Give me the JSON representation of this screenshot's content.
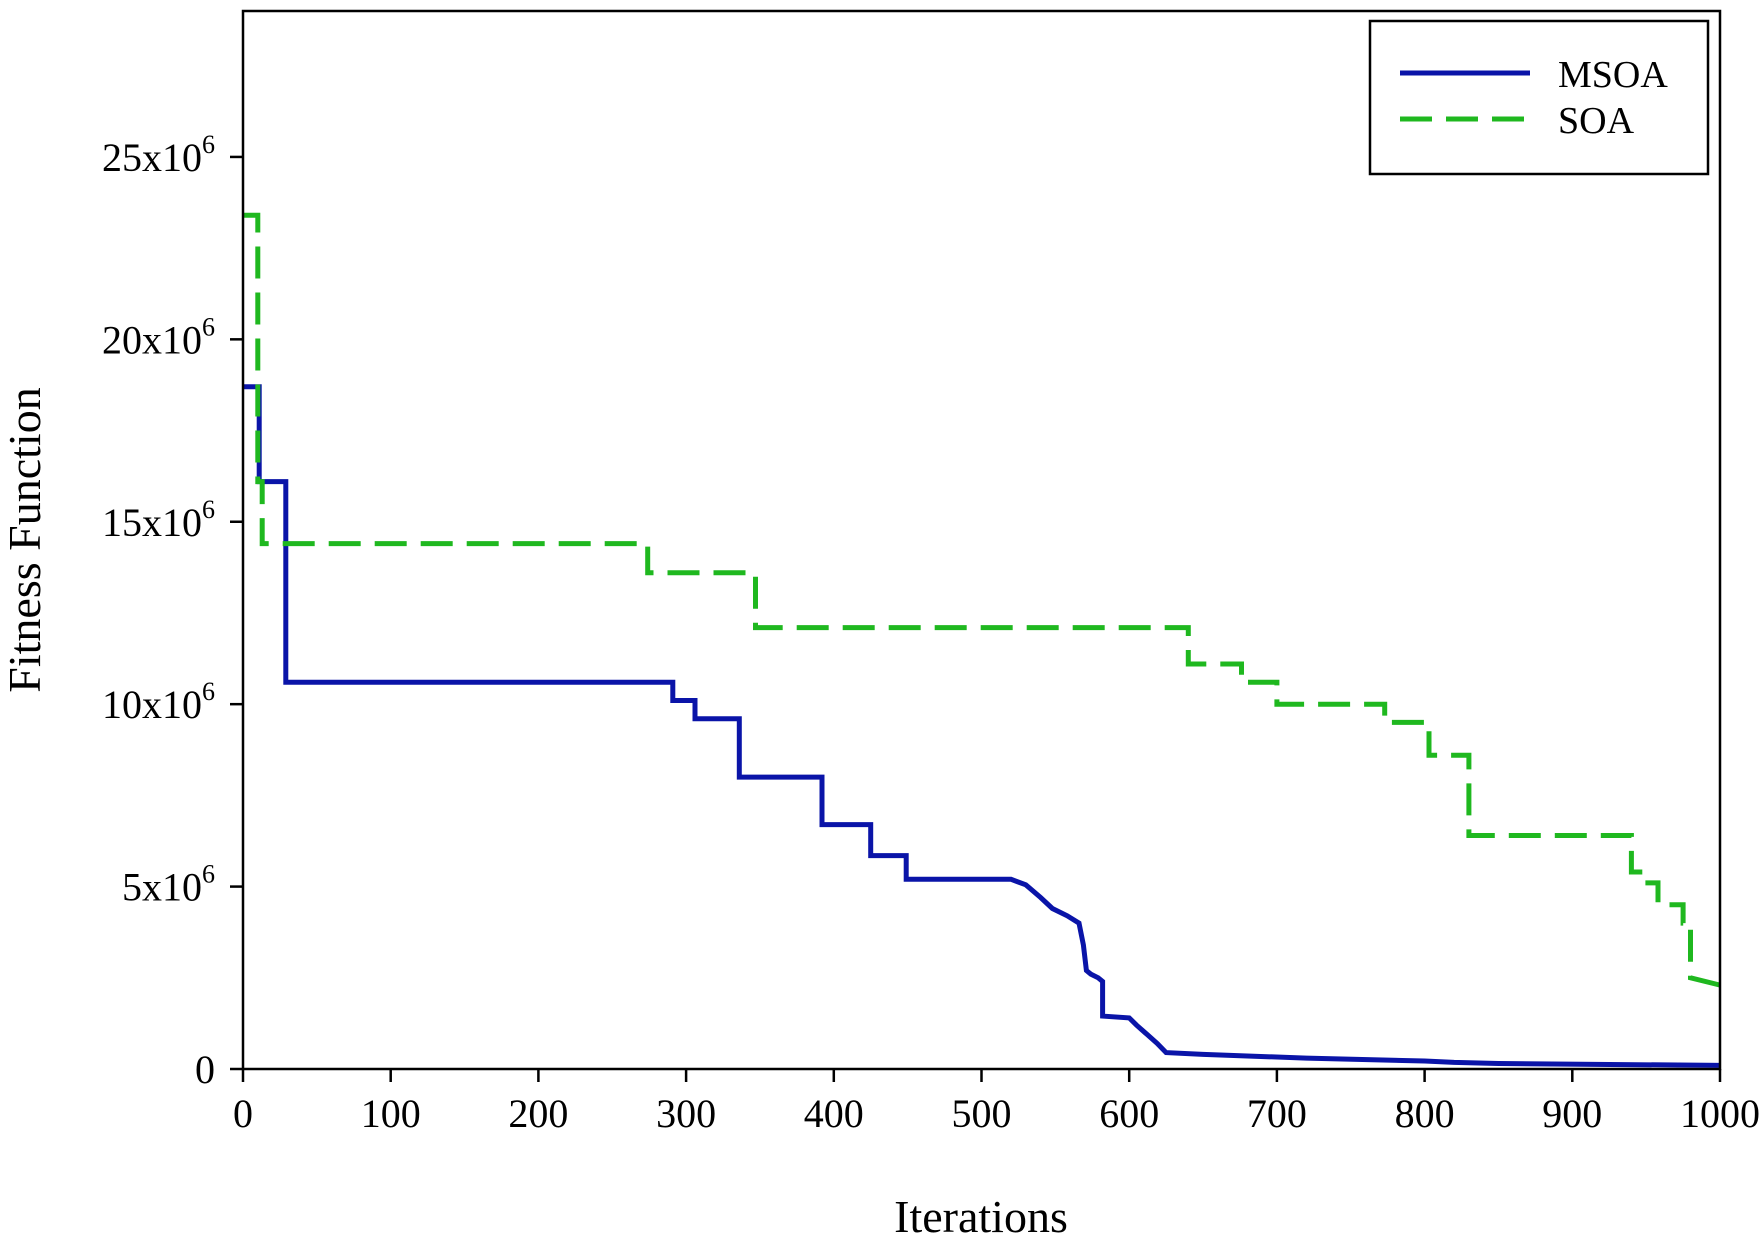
{
  "chart_data": {
    "type": "line",
    "title": "",
    "xlabel": "Iterations",
    "ylabel": "Fitness Function",
    "xlim": [
      0,
      1000
    ],
    "ylim": [
      0,
      29000000
    ],
    "grid": false,
    "legend_position": "top-right",
    "x_ticks": [
      {
        "value": 0,
        "label": "0"
      },
      {
        "value": 100,
        "label": "100"
      },
      {
        "value": 200,
        "label": "200"
      },
      {
        "value": 300,
        "label": "300"
      },
      {
        "value": 400,
        "label": "400"
      },
      {
        "value": 500,
        "label": "500"
      },
      {
        "value": 600,
        "label": "600"
      },
      {
        "value": 700,
        "label": "700"
      },
      {
        "value": 800,
        "label": "800"
      },
      {
        "value": 900,
        "label": "900"
      },
      {
        "value": 1000,
        "label": "1000"
      }
    ],
    "y_ticks": [
      {
        "value": 0,
        "mantissa": "0",
        "exponent": ""
      },
      {
        "value": 5000000,
        "mantissa": "5x10",
        "exponent": "6"
      },
      {
        "value": 10000000,
        "mantissa": "10x10",
        "exponent": "6"
      },
      {
        "value": 15000000,
        "mantissa": "15x10",
        "exponent": "6"
      },
      {
        "value": 20000000,
        "mantissa": "20x10",
        "exponent": "6"
      },
      {
        "value": 25000000,
        "mantissa": "25x10",
        "exponent": "6"
      }
    ],
    "series": [
      {
        "name": "MSOA",
        "color": "#0a14a8",
        "style": "solid",
        "x": [
          0,
          11,
          11,
          29,
          29,
          291,
          291,
          306,
          306,
          336,
          336,
          392,
          392,
          425,
          425,
          449,
          449,
          520,
          530,
          540,
          548,
          558,
          566,
          569,
          571,
          574,
          579,
          582,
          582,
          600,
          605,
          612,
          619,
          625,
          650,
          720,
          800,
          820,
          850,
          1000
        ],
        "y": [
          18700000,
          18700000,
          16100000,
          16100000,
          10600000,
          10600000,
          10100000,
          10100000,
          9600000,
          9600000,
          8000000,
          8000000,
          6700000,
          6700000,
          5850000,
          5850000,
          5200000,
          5200000,
          5050000,
          4700000,
          4400000,
          4200000,
          4000000,
          3400000,
          2700000,
          2600000,
          2500000,
          2400000,
          1450000,
          1400000,
          1200000,
          950000,
          700000,
          450000,
          400000,
          300000,
          220000,
          180000,
          150000,
          100000
        ]
      },
      {
        "name": "SOA",
        "color": "#1fb81f",
        "style": "dashed",
        "x": [
          0,
          10,
          10,
          13,
          13,
          274,
          274,
          347,
          347,
          640,
          640,
          676,
          676,
          700,
          700,
          773,
          773,
          803,
          803,
          830,
          830,
          940,
          940,
          948,
          948,
          958,
          958,
          975,
          975,
          980,
          980,
          1000
        ],
        "y": [
          23400000,
          23400000,
          16100000,
          16100000,
          14400000,
          14400000,
          13600000,
          13600000,
          12100000,
          12100000,
          11100000,
          11100000,
          10600000,
          10600000,
          10000000,
          10000000,
          9500000,
          9500000,
          8600000,
          8600000,
          6400000,
          6400000,
          5400000,
          5400000,
          5100000,
          5100000,
          4500000,
          4500000,
          4000000,
          4000000,
          2500000,
          2300000
        ]
      }
    ]
  }
}
